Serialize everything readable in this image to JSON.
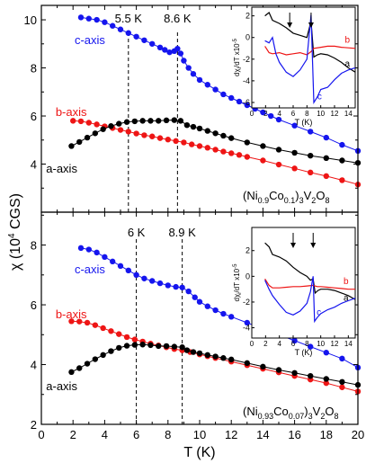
{
  "chart_data": [
    {
      "type": "scatter",
      "panel": "top",
      "compound_parts": [
        "(Ni",
        "0.9",
        "Co",
        "0.1",
        ")",
        "3",
        "V",
        "2",
        "O",
        "8"
      ],
      "xlim": [
        0,
        20
      ],
      "ylim": [
        2,
        10.6
      ],
      "yticks": [
        2,
        4,
        6,
        8,
        10
      ],
      "xticks": [
        0,
        2,
        4,
        6,
        8,
        10,
        12,
        14,
        16,
        18,
        20
      ],
      "grid": false,
      "vlines": [
        {
          "x": 5.5,
          "label": "5.5 K"
        },
        {
          "x": 8.6,
          "label": "8.6 K"
        }
      ],
      "series": [
        {
          "name": "c-axis",
          "color": "#1515ee",
          "label_at": [
            2.1,
            9.0
          ],
          "x": [
            2.5,
            3.0,
            3.5,
            4.0,
            4.5,
            5.0,
            5.5,
            6.0,
            6.5,
            7.0,
            7.5,
            7.8,
            8.1,
            8.4,
            8.6,
            8.8,
            9.0,
            9.3,
            9.6,
            10.0,
            10.5,
            11.0,
            11.5,
            12.0,
            12.5,
            13.0,
            13.5,
            14.0,
            14.5,
            15.0,
            16.0,
            17.0,
            18.0,
            19.0,
            20.0
          ],
          "y": [
            10.1,
            10.05,
            10.0,
            9.9,
            9.75,
            9.6,
            9.45,
            9.3,
            9.15,
            9.0,
            8.85,
            8.75,
            8.65,
            8.7,
            8.8,
            8.6,
            8.3,
            8.0,
            7.75,
            7.5,
            7.3,
            7.1,
            6.9,
            6.75,
            6.6,
            6.45,
            6.3,
            6.15,
            6.0,
            5.85,
            5.6,
            5.35,
            5.1,
            4.8,
            4.55
          ]
        },
        {
          "name": "b-axis",
          "color": "#ee1515",
          "label_at": [
            0.9,
            6.0
          ],
          "x": [
            2.0,
            2.5,
            3.0,
            3.5,
            4.0,
            4.5,
            5.0,
            5.5,
            6.0,
            6.5,
            7.0,
            7.5,
            8.0,
            8.5,
            9.0,
            9.5,
            10.0,
            10.5,
            11.0,
            11.5,
            12.0,
            12.5,
            13.0,
            14.0,
            15.0,
            16.0,
            17.0,
            18.0,
            19.0,
            20.0
          ],
          "y": [
            5.8,
            5.78,
            5.72,
            5.65,
            5.57,
            5.5,
            5.42,
            5.35,
            5.27,
            5.2,
            5.15,
            5.08,
            5.02,
            4.96,
            4.9,
            4.82,
            4.75,
            4.68,
            4.6,
            4.52,
            4.45,
            4.38,
            4.3,
            4.15,
            3.98,
            3.82,
            3.65,
            3.5,
            3.33,
            3.15
          ]
        },
        {
          "name": "a-axis",
          "color": "#000000",
          "label_at": [
            0.3,
            3.65
          ],
          "x": [
            1.9,
            2.4,
            2.9,
            3.4,
            3.9,
            4.4,
            4.9,
            5.4,
            5.9,
            6.4,
            6.9,
            7.4,
            7.9,
            8.4,
            8.8,
            9.2,
            9.6,
            10.0,
            10.5,
            11.0,
            11.5,
            12.0,
            13.0,
            14.0,
            15.0,
            16.0,
            17.0,
            18.0,
            19.0,
            20.0
          ],
          "y": [
            4.75,
            4.92,
            5.1,
            5.28,
            5.45,
            5.58,
            5.68,
            5.75,
            5.78,
            5.8,
            5.8,
            5.8,
            5.82,
            5.83,
            5.8,
            5.62,
            5.55,
            5.48,
            5.38,
            5.28,
            5.18,
            5.08,
            4.9,
            4.75,
            4.6,
            4.47,
            4.35,
            4.25,
            4.15,
            4.05
          ]
        }
      ],
      "inset": {
        "xlim": [
          0,
          15
        ],
        "ylim": [
          -6.5,
          2.8
        ],
        "xticks": [
          0,
          2,
          4,
          6,
          8,
          10,
          12,
          14
        ],
        "yticks": [
          -6,
          -4,
          -2,
          0,
          2
        ],
        "xlabel": "T (K)",
        "ylabel_parts": [
          "dχ",
          "i",
          "/dT x10",
          "-5"
        ],
        "arrows_x": [
          5.5,
          8.6
        ],
        "series": [
          {
            "name": "a",
            "color": "#000000",
            "label_at": [
              13.5,
              -2.7
            ],
            "x": [
              1.9,
              2.5,
              3,
              4,
              5,
              6,
              7,
              8,
              8.6,
              9,
              9.5,
              10,
              11,
              12,
              13,
              14,
              15
            ],
            "y": [
              2.0,
              2.3,
              1.6,
              1.3,
              0.9,
              0.4,
              0.2,
              0.0,
              1.5,
              -1.8,
              -1.6,
              -1.5,
              -1.6,
              -1.9,
              -2.3,
              -2.8,
              -3.2
            ]
          },
          {
            "name": "b",
            "color": "#ee1515",
            "label_at": [
              13.5,
              -0.5
            ],
            "x": [
              1.9,
              2.5,
              3,
              4,
              5,
              6,
              7,
              8,
              8.6,
              9,
              10,
              11,
              12,
              13,
              14,
              15
            ],
            "y": [
              -0.8,
              -1.4,
              -1.5,
              -1.4,
              -1.6,
              -1.5,
              -1.4,
              -1.6,
              -1.3,
              -1.0,
              -0.9,
              -0.8,
              -0.8,
              -0.9,
              -0.95,
              -1.0
            ]
          },
          {
            "name": "c",
            "color": "#1515ee",
            "label_at": [
              9.5,
              -5.7
            ],
            "x": [
              1.9,
              2.5,
              3,
              3.5,
              4,
              5,
              6,
              7,
              8,
              8.6,
              9,
              9.5,
              10,
              11,
              12,
              13,
              14,
              15
            ],
            "y": [
              -0.3,
              -0.5,
              0.0,
              -1.5,
              -2.3,
              -3.2,
              -3.6,
              -3.0,
              -2.0,
              2.1,
              -6.0,
              -5.5,
              -4.8,
              -4.6,
              -3.9,
              -3.3,
              -3.0,
              -2.8
            ]
          }
        ]
      }
    },
    {
      "type": "scatter",
      "panel": "bottom",
      "compound_parts": [
        "(Ni",
        "0.93",
        "Co",
        "0.07",
        ")",
        "3",
        "V",
        "2",
        "O",
        "8"
      ],
      "xlim": [
        0,
        20
      ],
      "ylim": [
        2,
        9.1
      ],
      "yticks": [
        2,
        4,
        6,
        8
      ],
      "xticks": [
        0,
        2,
        4,
        6,
        8,
        10,
        12,
        14,
        16,
        18,
        20
      ],
      "grid": false,
      "vlines": [
        {
          "x": 6.0,
          "label": "6 K"
        },
        {
          "x": 8.9,
          "label": "8.9 K"
        }
      ],
      "series": [
        {
          "name": "c-axis",
          "color": "#1515ee",
          "label_at": [
            2.1,
            7.05
          ],
          "x": [
            2.5,
            3.0,
            3.5,
            4.0,
            4.5,
            5.0,
            5.5,
            6.0,
            6.5,
            7.0,
            7.5,
            8.0,
            8.5,
            8.9,
            9.3,
            9.7,
            10.0,
            10.5,
            11.0,
            11.5,
            12.0,
            13.0,
            14.0,
            15.0,
            16.0,
            17.0,
            18.0,
            19.0,
            20.0
          ],
          "y": [
            7.9,
            7.85,
            7.75,
            7.6,
            7.45,
            7.3,
            7.15,
            7.0,
            6.88,
            6.8,
            6.72,
            6.65,
            6.6,
            6.58,
            6.45,
            6.25,
            6.1,
            5.95,
            5.82,
            5.7,
            5.6,
            5.4,
            5.2,
            5.0,
            4.8,
            4.6,
            4.4,
            4.2,
            3.9
          ]
        },
        {
          "name": "b-axis",
          "color": "#ee1515",
          "label_at": [
            0.9,
            5.55
          ],
          "x": [
            1.9,
            2.4,
            2.9,
            3.4,
            3.9,
            4.4,
            4.9,
            5.4,
            5.9,
            6.4,
            6.9,
            7.4,
            7.9,
            8.4,
            8.9,
            9.4,
            10.0,
            10.5,
            11.0,
            12.0,
            13.0,
            14.0,
            15.0,
            16.0,
            17.0,
            18.0,
            19.0,
            20.0
          ],
          "y": [
            5.45,
            5.44,
            5.4,
            5.32,
            5.22,
            5.12,
            5.02,
            4.92,
            4.84,
            4.77,
            4.7,
            4.64,
            4.58,
            4.52,
            4.48,
            4.42,
            4.34,
            4.28,
            4.22,
            4.1,
            3.98,
            3.86,
            3.74,
            3.62,
            3.5,
            3.38,
            3.24,
            3.1
          ]
        },
        {
          "name": "a-axis",
          "color": "#000000",
          "label_at": [
            0.3,
            3.15
          ],
          "x": [
            1.9,
            2.4,
            2.9,
            3.4,
            3.9,
            4.4,
            4.9,
            5.4,
            5.9,
            6.4,
            6.9,
            7.4,
            7.9,
            8.4,
            8.9,
            9.2,
            9.6,
            10.0,
            10.5,
            11.0,
            11.5,
            12.0,
            13.0,
            14.0,
            15.0,
            16.0,
            17.0,
            18.0,
            19.0,
            20.0
          ],
          "y": [
            3.75,
            3.88,
            4.03,
            4.18,
            4.32,
            4.45,
            4.56,
            4.63,
            4.66,
            4.67,
            4.65,
            4.62,
            4.62,
            4.6,
            4.58,
            4.48,
            4.42,
            4.38,
            4.32,
            4.27,
            4.22,
            4.17,
            4.05,
            3.93,
            3.82,
            3.72,
            3.62,
            3.52,
            3.42,
            3.32
          ]
        }
      ],
      "inset": {
        "xlim": [
          0,
          15
        ],
        "ylim": [
          -4.8,
          3.8
        ],
        "xticks": [
          0,
          2,
          4,
          6,
          8,
          10,
          12,
          14
        ],
        "yticks": [
          -4,
          -2,
          0,
          2
        ],
        "xlabel": "T (K)",
        "ylabel_parts": [
          "dχ",
          "i",
          "/dT x10",
          "-5"
        ],
        "arrows_x": [
          6.0,
          8.9
        ],
        "series": [
          {
            "name": "a",
            "color": "#000000",
            "label_at": [
              13.3,
              -1.9
            ],
            "x": [
              1.9,
              2.5,
              3,
              4,
              5,
              6,
              7,
              8,
              8.5,
              8.9,
              9.2,
              9.6,
              10,
              11,
              12,
              13,
              14,
              15
            ],
            "y": [
              2.6,
              2.3,
              1.7,
              1.5,
              1.2,
              0.7,
              0.3,
              0.0,
              -0.3,
              -0.2,
              -1.3,
              -1.1,
              -1.0,
              -1.0,
              -1.1,
              -1.3,
              -1.5,
              -1.8
            ]
          },
          {
            "name": "b",
            "color": "#ee1515",
            "label_at": [
              13.3,
              -0.6
            ],
            "x": [
              1.9,
              2.5,
              3,
              4,
              5,
              6,
              7,
              8,
              8.9,
              9.5,
              10,
              11,
              12,
              13,
              14,
              15
            ],
            "y": [
              -0.2,
              -0.7,
              -0.9,
              -0.9,
              -0.85,
              -0.8,
              -0.8,
              -0.75,
              -0.7,
              -0.8,
              -0.8,
              -0.85,
              -0.9,
              -0.95,
              -1.0,
              -1.0
            ]
          },
          {
            "name": "c",
            "color": "#1515ee",
            "label_at": [
              9.4,
              -3.0
            ],
            "x": [
              1.9,
              2.5,
              3,
              4,
              5,
              6,
              7,
              8,
              8.5,
              8.9,
              9.1,
              9.5,
              10,
              11,
              12,
              13,
              14,
              15
            ],
            "y": [
              -0.3,
              -1.0,
              -1.5,
              -2.2,
              -2.8,
              -3.0,
              -2.7,
              -2.1,
              -1.2,
              0.0,
              -3.5,
              -3.2,
              -2.9,
              -2.6,
              -2.4,
              -2.1,
              -1.9,
              -1.7
            ]
          }
        ]
      }
    }
  ],
  "axes": {
    "xlabel": "T (K)",
    "ylabel_parts": [
      "χ (10",
      "4",
      " CGS)"
    ]
  }
}
